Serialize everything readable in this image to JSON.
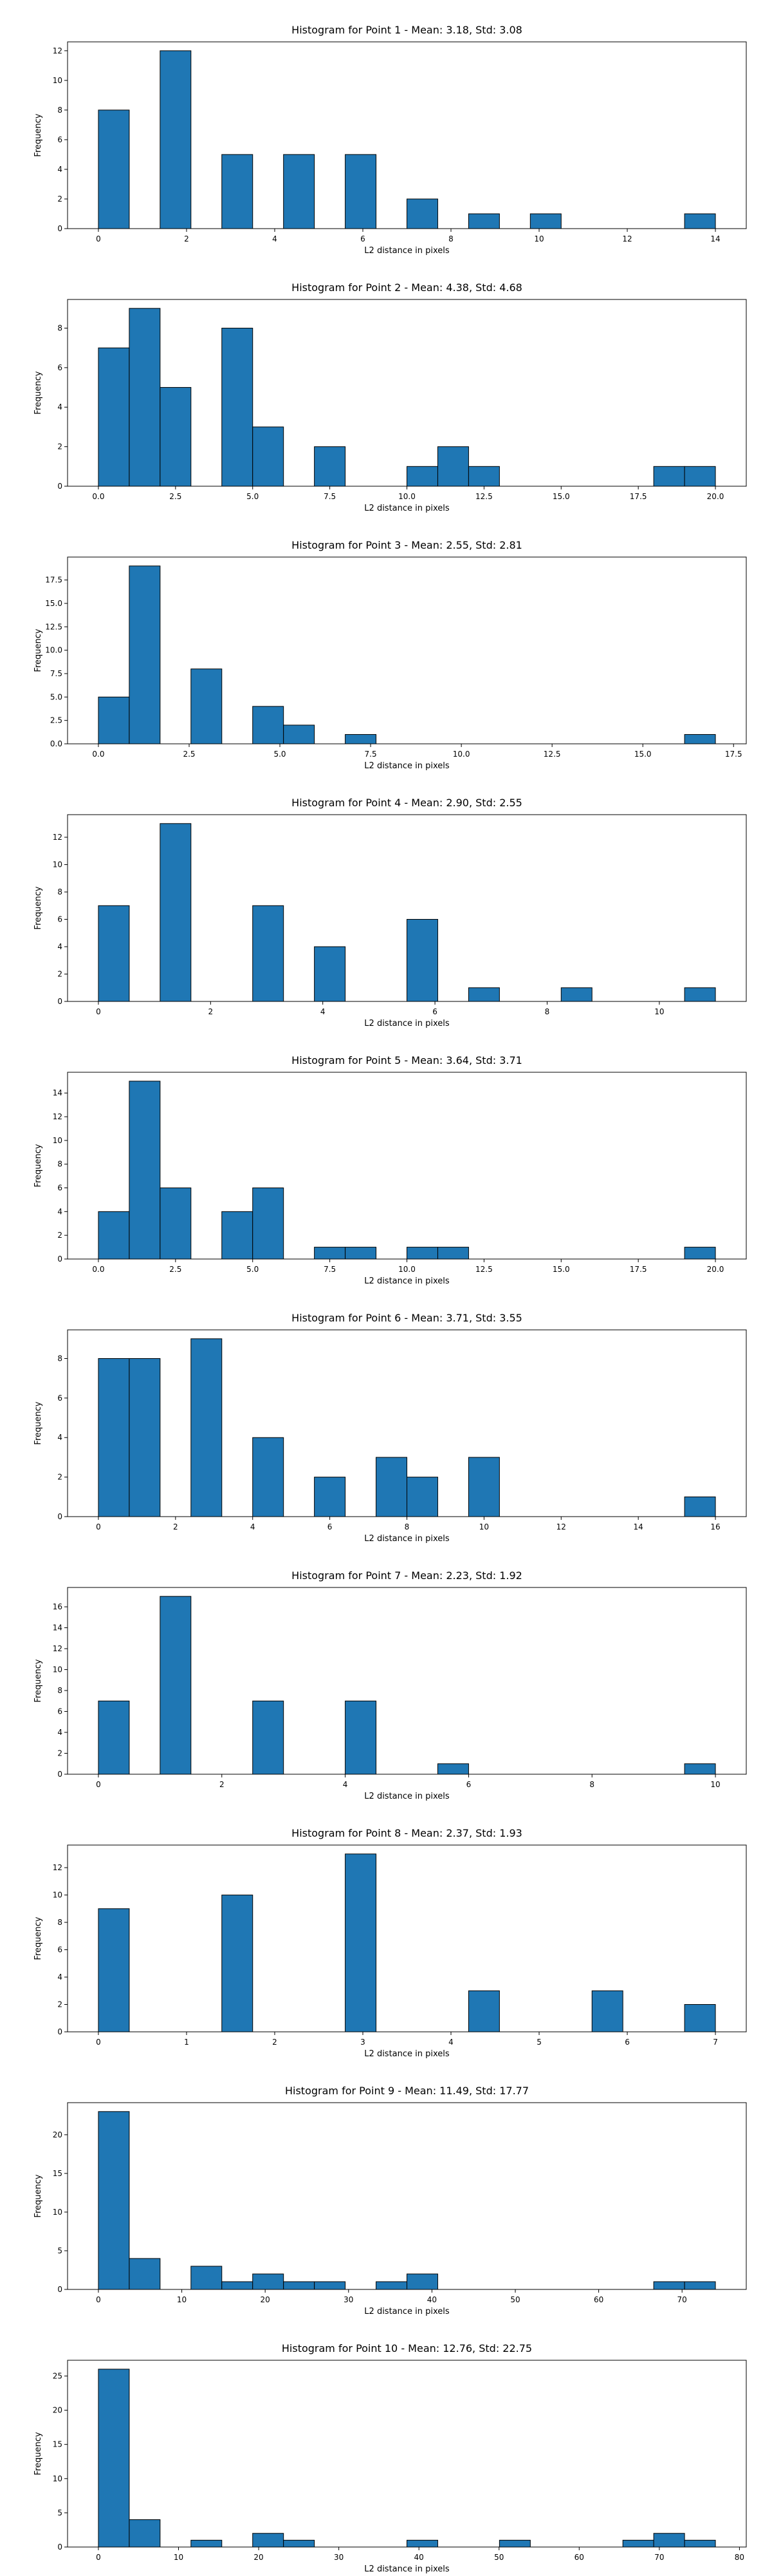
{
  "chart_data": [
    {
      "type": "bar",
      "title": "Histogram for Point 1 - Mean: 3.18, Std: 3.08",
      "xlabel": "L2 distance in pixels",
      "ylabel": "Frequency",
      "xlim": [
        -0.7,
        14.7
      ],
      "ylim": [
        0,
        12.6
      ],
      "xticks": [
        0,
        2,
        4,
        6,
        8,
        10,
        12,
        14
      ],
      "xtick_labels": [
        "0",
        "2",
        "4",
        "6",
        "8",
        "10",
        "12",
        "14"
      ],
      "yticks": [
        0,
        2,
        4,
        6,
        8,
        10,
        12
      ],
      "ytick_labels": [
        "0",
        "2",
        "4",
        "6",
        "8",
        "10",
        "12"
      ],
      "bins": [
        [
          0,
          0.7,
          8
        ],
        [
          1.4,
          2.1,
          12
        ],
        [
          2.8,
          3.5,
          5
        ],
        [
          4.2,
          4.9,
          5
        ],
        [
          5.6,
          6.3,
          5
        ],
        [
          7.0,
          7.7,
          2
        ],
        [
          8.4,
          9.1,
          1
        ],
        [
          9.8,
          10.5,
          1
        ],
        [
          13.3,
          14.0,
          1
        ]
      ]
    },
    {
      "type": "bar",
      "title": "Histogram for Point 2 - Mean: 4.38, Std: 4.68",
      "xlabel": "L2 distance in pixels",
      "ylabel": "Frequency",
      "xlim": [
        -1.0,
        21.0
      ],
      "ylim": [
        0,
        9.45
      ],
      "xticks": [
        0,
        2.5,
        5,
        7.5,
        10,
        12.5,
        15,
        17.5,
        20
      ],
      "xtick_labels": [
        "0.0",
        "2.5",
        "5.0",
        "7.5",
        "10.0",
        "12.5",
        "15.0",
        "17.5",
        "20.0"
      ],
      "yticks": [
        0,
        2,
        4,
        6,
        8
      ],
      "ytick_labels": [
        "0",
        "2",
        "4",
        "6",
        "8"
      ],
      "bins": [
        [
          0,
          1,
          7
        ],
        [
          1,
          2,
          9
        ],
        [
          2,
          3,
          5
        ],
        [
          4,
          5,
          8
        ],
        [
          5,
          6,
          3
        ],
        [
          7,
          8,
          2
        ],
        [
          10,
          11,
          1
        ],
        [
          11,
          12,
          2
        ],
        [
          12,
          13,
          1
        ],
        [
          18,
          19,
          1
        ],
        [
          19,
          20,
          1
        ]
      ]
    },
    {
      "type": "bar",
      "title": "Histogram for Point 3 - Mean: 2.55, Std: 2.81",
      "xlabel": "L2 distance in pixels",
      "ylabel": "Frequency",
      "xlim": [
        -0.85,
        17.85
      ],
      "ylim": [
        0,
        19.95
      ],
      "xticks": [
        0,
        2.5,
        5,
        7.5,
        10,
        12.5,
        15,
        17.5
      ],
      "xtick_labels": [
        "0.0",
        "2.5",
        "5.0",
        "7.5",
        "10.0",
        "12.5",
        "15.0",
        "17.5"
      ],
      "yticks": [
        0,
        2.5,
        5,
        7.5,
        10,
        12.5,
        15,
        17.5
      ],
      "ytick_labels": [
        "0.0",
        "2.5",
        "5.0",
        "7.5",
        "10.0",
        "12.5",
        "15.0",
        "17.5"
      ],
      "bins": [
        [
          0,
          0.85,
          5
        ],
        [
          0.85,
          1.7,
          19
        ],
        [
          2.55,
          3.4,
          8
        ],
        [
          4.25,
          5.1,
          4
        ],
        [
          5.1,
          5.95,
          2
        ],
        [
          6.8,
          7.65,
          1
        ],
        [
          16.15,
          17.0,
          1
        ]
      ]
    },
    {
      "type": "bar",
      "title": "Histogram for Point 4 - Mean: 2.90, Std: 2.55",
      "xlabel": "L2 distance in pixels",
      "ylabel": "Frequency",
      "xlim": [
        -0.55,
        11.55
      ],
      "ylim": [
        0,
        13.65
      ],
      "xticks": [
        0,
        2,
        4,
        6,
        8,
        10
      ],
      "xtick_labels": [
        "0",
        "2",
        "4",
        "6",
        "8",
        "10"
      ],
      "yticks": [
        0,
        2,
        4,
        6,
        8,
        10,
        12
      ],
      "ytick_labels": [
        "0",
        "2",
        "4",
        "6",
        "8",
        "10",
        "12"
      ],
      "bins": [
        [
          0,
          0.55,
          7
        ],
        [
          1.1,
          1.65,
          13
        ],
        [
          2.75,
          3.3,
          7
        ],
        [
          3.85,
          4.4,
          4
        ],
        [
          5.5,
          6.05,
          6
        ],
        [
          6.6,
          7.15,
          1
        ],
        [
          8.25,
          8.8,
          1
        ],
        [
          10.45,
          11.0,
          1
        ]
      ]
    },
    {
      "type": "bar",
      "title": "Histogram for Point 5 - Mean: 3.64, Std: 3.71",
      "xlabel": "L2 distance in pixels",
      "ylabel": "Frequency",
      "xlim": [
        -1.0,
        21.0
      ],
      "ylim": [
        0,
        15.75
      ],
      "xticks": [
        0,
        2.5,
        5,
        7.5,
        10,
        12.5,
        15,
        17.5,
        20
      ],
      "xtick_labels": [
        "0.0",
        "2.5",
        "5.0",
        "7.5",
        "10.0",
        "12.5",
        "15.0",
        "17.5",
        "20.0"
      ],
      "yticks": [
        0,
        2,
        4,
        6,
        8,
        10,
        12,
        14
      ],
      "ytick_labels": [
        "0",
        "2",
        "4",
        "6",
        "8",
        "10",
        "12",
        "14"
      ],
      "bins": [
        [
          0,
          1,
          4
        ],
        [
          1,
          2,
          15
        ],
        [
          2,
          3,
          6
        ],
        [
          4,
          5,
          4
        ],
        [
          5,
          6,
          6
        ],
        [
          7,
          8,
          1
        ],
        [
          8,
          9,
          1
        ],
        [
          10,
          11,
          1
        ],
        [
          11,
          12,
          1
        ],
        [
          19,
          20,
          1
        ]
      ]
    },
    {
      "type": "bar",
      "title": "Histogram for Point 6 - Mean: 3.71, Std: 3.55",
      "xlabel": "L2 distance in pixels",
      "ylabel": "Frequency",
      "xlim": [
        -0.8,
        16.8
      ],
      "ylim": [
        0,
        9.45
      ],
      "xticks": [
        0,
        2,
        4,
        6,
        8,
        10,
        12,
        14,
        16
      ],
      "xtick_labels": [
        "0",
        "2",
        "4",
        "6",
        "8",
        "10",
        "12",
        "14",
        "16"
      ],
      "yticks": [
        0,
        2,
        4,
        6,
        8
      ],
      "ytick_labels": [
        "0",
        "2",
        "4",
        "6",
        "8"
      ],
      "bins": [
        [
          0,
          0.8,
          8
        ],
        [
          0.8,
          1.6,
          8
        ],
        [
          2.4,
          3.2,
          9
        ],
        [
          4.0,
          4.8,
          4
        ],
        [
          5.6,
          6.4,
          2
        ],
        [
          7.2,
          8.0,
          3
        ],
        [
          8.0,
          8.8,
          2
        ],
        [
          9.6,
          10.4,
          3
        ],
        [
          15.2,
          16.0,
          1
        ]
      ]
    },
    {
      "type": "bar",
      "title": "Histogram for Point 7 - Mean: 2.23, Std: 1.92",
      "xlabel": "L2 distance in pixels",
      "ylabel": "Frequency",
      "xlim": [
        -0.5,
        10.5
      ],
      "ylim": [
        0,
        17.85
      ],
      "xticks": [
        0,
        2,
        4,
        6,
        8,
        10
      ],
      "xtick_labels": [
        "0",
        "2",
        "4",
        "6",
        "8",
        "10"
      ],
      "yticks": [
        0,
        2,
        4,
        6,
        8,
        10,
        12,
        14,
        16
      ],
      "ytick_labels": [
        "0",
        "2",
        "4",
        "6",
        "8",
        "10",
        "12",
        "14",
        "16"
      ],
      "bins": [
        [
          0,
          0.5,
          7
        ],
        [
          1.0,
          1.5,
          17
        ],
        [
          2.5,
          3.0,
          7
        ],
        [
          4.0,
          4.5,
          7
        ],
        [
          5.5,
          6.0,
          1
        ],
        [
          9.5,
          10.0,
          1
        ]
      ]
    },
    {
      "type": "bar",
      "title": "Histogram for Point 8 - Mean: 2.37, Std: 1.93",
      "xlabel": "L2 distance in pixels",
      "ylabel": "Frequency",
      "xlim": [
        -0.35,
        7.35
      ],
      "ylim": [
        0,
        13.65
      ],
      "xticks": [
        0,
        1,
        2,
        3,
        4,
        5,
        6,
        7
      ],
      "xtick_labels": [
        "0",
        "1",
        "2",
        "3",
        "4",
        "5",
        "6",
        "7"
      ],
      "yticks": [
        0,
        2,
        4,
        6,
        8,
        10,
        12
      ],
      "ytick_labels": [
        "0",
        "2",
        "4",
        "6",
        "8",
        "10",
        "12"
      ],
      "bins": [
        [
          0,
          0.35,
          9
        ],
        [
          1.4,
          1.75,
          10
        ],
        [
          2.8,
          3.15,
          13
        ],
        [
          4.2,
          4.55,
          3
        ],
        [
          5.6,
          5.95,
          3
        ],
        [
          6.65,
          7.0,
          2
        ]
      ]
    },
    {
      "type": "bar",
      "title": "Histogram for Point 9 - Mean: 11.49, Std: 17.77",
      "xlabel": "L2 distance in pixels",
      "ylabel": "Frequency",
      "xlim": [
        -3.7,
        77.7
      ],
      "ylim": [
        0,
        24.15
      ],
      "xticks": [
        0,
        10,
        20,
        30,
        40,
        50,
        60,
        70
      ],
      "xtick_labels": [
        "0",
        "10",
        "20",
        "30",
        "40",
        "50",
        "60",
        "70"
      ],
      "yticks": [
        0,
        5,
        10,
        15,
        20
      ],
      "ytick_labels": [
        "0",
        "5",
        "10",
        "15",
        "20"
      ],
      "bins": [
        [
          0,
          3.7,
          23
        ],
        [
          3.7,
          7.4,
          4
        ],
        [
          11.1,
          14.8,
          3
        ],
        [
          14.8,
          18.5,
          1
        ],
        [
          18.5,
          22.2,
          2
        ],
        [
          22.2,
          25.9,
          1
        ],
        [
          25.9,
          29.6,
          1
        ],
        [
          33.3,
          37.0,
          1
        ],
        [
          37.0,
          40.7,
          2
        ],
        [
          66.6,
          70.3,
          1
        ],
        [
          70.3,
          74.0,
          1
        ]
      ]
    },
    {
      "type": "bar",
      "title": "Histogram for Point 10 - Mean: 12.76, Std: 22.75",
      "xlabel": "L2 distance in pixels",
      "ylabel": "Frequency",
      "xlim": [
        -3.85,
        80.85
      ],
      "ylim": [
        0,
        27.3
      ],
      "xticks": [
        0,
        10,
        20,
        30,
        40,
        50,
        60,
        70,
        80
      ],
      "xtick_labels": [
        "0",
        "10",
        "20",
        "30",
        "40",
        "50",
        "60",
        "70",
        "80"
      ],
      "yticks": [
        0,
        5,
        10,
        15,
        20,
        25
      ],
      "ytick_labels": [
        "0",
        "5",
        "10",
        "15",
        "20",
        "25"
      ],
      "bins": [
        [
          0,
          3.85,
          26
        ],
        [
          3.85,
          7.7,
          4
        ],
        [
          11.55,
          15.4,
          1
        ],
        [
          19.25,
          23.1,
          2
        ],
        [
          23.1,
          26.95,
          1
        ],
        [
          38.5,
          42.35,
          1
        ],
        [
          50.05,
          53.9,
          1
        ],
        [
          65.45,
          69.3,
          1
        ],
        [
          69.3,
          73.15,
          2
        ],
        [
          73.15,
          77.0,
          1
        ]
      ]
    }
  ]
}
